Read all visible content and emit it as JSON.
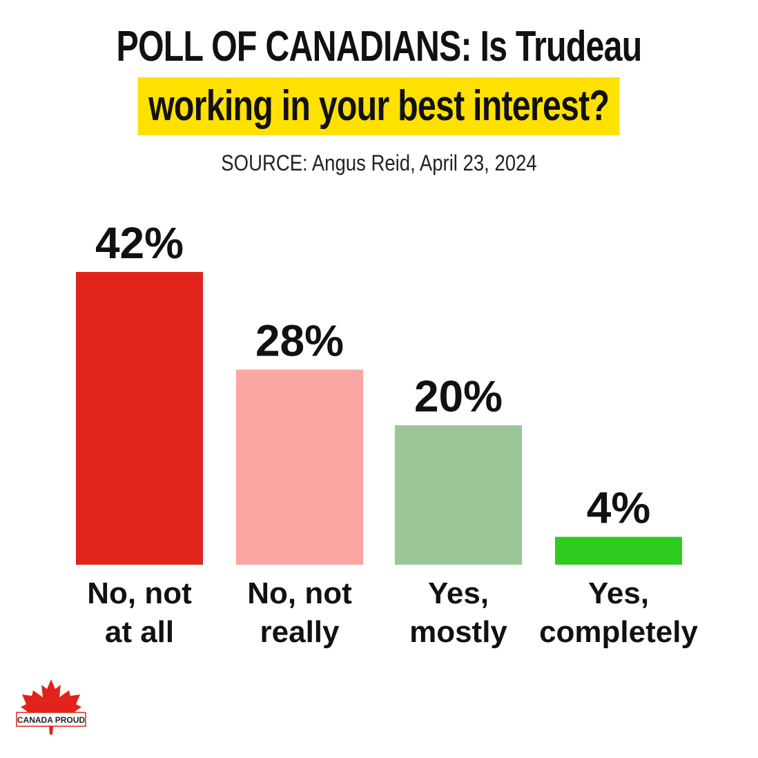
{
  "title": {
    "line1": "POLL OF CANADIANS: Is Trudeau",
    "line2": "working in your best interest?"
  },
  "source": "SOURCE: Angus Reid, April 23, 2024",
  "colors": {
    "highlight": "#ffe100",
    "no_not_at_all": "#e0241b",
    "no_not_really": "#fba6a2",
    "yes_mostly": "#9bc497",
    "yes_completely": "#2ecc1f"
  },
  "chart_data": {
    "type": "bar",
    "categories": [
      [
        "No, not",
        "at all"
      ],
      [
        "No, not",
        "really"
      ],
      [
        "Yes,",
        "mostly"
      ],
      [
        "Yes,",
        "completely"
      ]
    ],
    "values": [
      42,
      28,
      20,
      4
    ],
    "value_labels": [
      "42%",
      "28%",
      "20%",
      "4%"
    ],
    "bar_colors": [
      "#e0241b",
      "#fba6a2",
      "#9bc497",
      "#2ecc1f"
    ],
    "title": "POLL OF CANADIANS: Is Trudeau working in your best interest?",
    "xlabel": "",
    "ylabel": "",
    "ylim": [
      0,
      42
    ],
    "grid": false,
    "legend": "none"
  },
  "logo": {
    "text": "CANADA PROUD",
    "icon": "maple-leaf-icon"
  }
}
